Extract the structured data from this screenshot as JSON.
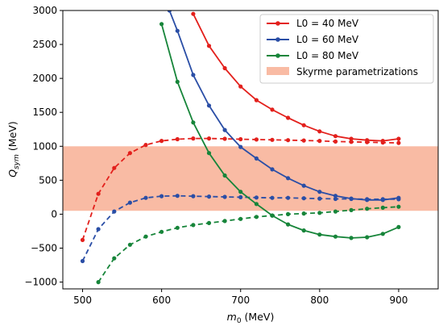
{
  "chart_data": {
    "type": "line",
    "xlabel": "m0 (MeV)",
    "xlabel_parts": {
      "main": "m",
      "sub": "0",
      "rest": " (MeV)"
    },
    "ylabel": "Qsym (MeV)",
    "ylabel_parts": {
      "main": "Q",
      "sub": "sym",
      "rest": " (MeV)"
    },
    "xlim": [
      475,
      950
    ],
    "ylim": [
      -1100,
      3000
    ],
    "xticks": [
      500,
      600,
      700,
      800,
      900
    ],
    "yticks": [
      -1000,
      -500,
      0,
      500,
      1000,
      1500,
      2000,
      2500,
      3000
    ],
    "ytick_labels": [
      "−1000",
      "−500",
      "0",
      "500",
      "1000",
      "1500",
      "2000",
      "2500",
      "3000"
    ],
    "grid": false,
    "legend_position": "top-right",
    "band": {
      "name": "Skyrme parametrizations",
      "y0": 50,
      "y1": 1000,
      "color": "#f9bba4"
    },
    "series": [
      {
        "name": "L0 = 40 MeV",
        "color": "#e3201c",
        "style": "solid",
        "x": [
          640,
          660,
          680,
          700,
          720,
          740,
          760,
          780,
          800,
          820,
          840,
          860,
          880,
          900
        ],
        "y": [
          2950,
          2480,
          2150,
          1880,
          1680,
          1540,
          1420,
          1310,
          1220,
          1150,
          1110,
          1090,
          1080,
          1110
        ]
      },
      {
        "name": "L0 = 40 MeV",
        "color": "#e3201c",
        "style": "dashed",
        "x": [
          500,
          520,
          540,
          560,
          580,
          600,
          620,
          640,
          660,
          680,
          700,
          720,
          740,
          760,
          780,
          800,
          820,
          840,
          860,
          880,
          900
        ],
        "y": [
          -380,
          300,
          680,
          900,
          1020,
          1080,
          1105,
          1115,
          1115,
          1110,
          1105,
          1100,
          1095,
          1090,
          1085,
          1080,
          1070,
          1065,
          1060,
          1055,
          1050
        ]
      },
      {
        "name": "L0 = 60 MeV",
        "color": "#2a4ea6",
        "style": "solid",
        "x": [
          610,
          620,
          640,
          660,
          680,
          700,
          720,
          740,
          760,
          780,
          800,
          820,
          840,
          860,
          880,
          900
        ],
        "y": [
          3000,
          2700,
          2050,
          1600,
          1240,
          990,
          820,
          660,
          530,
          420,
          330,
          270,
          230,
          210,
          210,
          240
        ]
      },
      {
        "name": "L0 = 60 MeV",
        "color": "#2a4ea6",
        "style": "dashed",
        "x": [
          500,
          520,
          540,
          560,
          580,
          600,
          620,
          640,
          660,
          680,
          700,
          720,
          740,
          760,
          780,
          800,
          820,
          840,
          860,
          880,
          900
        ],
        "y": [
          -690,
          -220,
          40,
          170,
          240,
          265,
          270,
          265,
          260,
          255,
          250,
          245,
          240,
          240,
          235,
          230,
          225,
          225,
          220,
          220,
          220
        ]
      },
      {
        "name": "L0 = 80 MeV",
        "color": "#17853a",
        "style": "solid",
        "x": [
          600,
          620,
          640,
          660,
          680,
          700,
          720,
          740,
          760,
          780,
          800,
          820,
          840,
          860,
          880,
          900
        ],
        "y": [
          2800,
          1950,
          1350,
          900,
          570,
          330,
          150,
          -20,
          -150,
          -240,
          -300,
          -330,
          -350,
          -340,
          -290,
          -190
        ]
      },
      {
        "name": "L0 = 80 MeV",
        "color": "#17853a",
        "style": "dashed",
        "x": [
          520,
          540,
          560,
          580,
          600,
          620,
          640,
          660,
          680,
          700,
          720,
          740,
          760,
          780,
          800,
          820,
          840,
          860,
          880,
          900
        ],
        "y": [
          -1000,
          -650,
          -450,
          -330,
          -260,
          -200,
          -160,
          -130,
          -100,
          -70,
          -40,
          -20,
          0,
          10,
          20,
          40,
          60,
          80,
          95,
          110
        ]
      }
    ]
  },
  "legend": {
    "entries": [
      {
        "label": "L0 = 40 MeV",
        "color": "#e3201c",
        "kind": "line"
      },
      {
        "label": "L0 = 60 MeV",
        "color": "#2a4ea6",
        "kind": "line"
      },
      {
        "label": "L0 = 80 MeV",
        "color": "#17853a",
        "kind": "line"
      },
      {
        "label": "Skyrme parametrizations",
        "color": "#f9bba4",
        "kind": "patch"
      }
    ]
  }
}
